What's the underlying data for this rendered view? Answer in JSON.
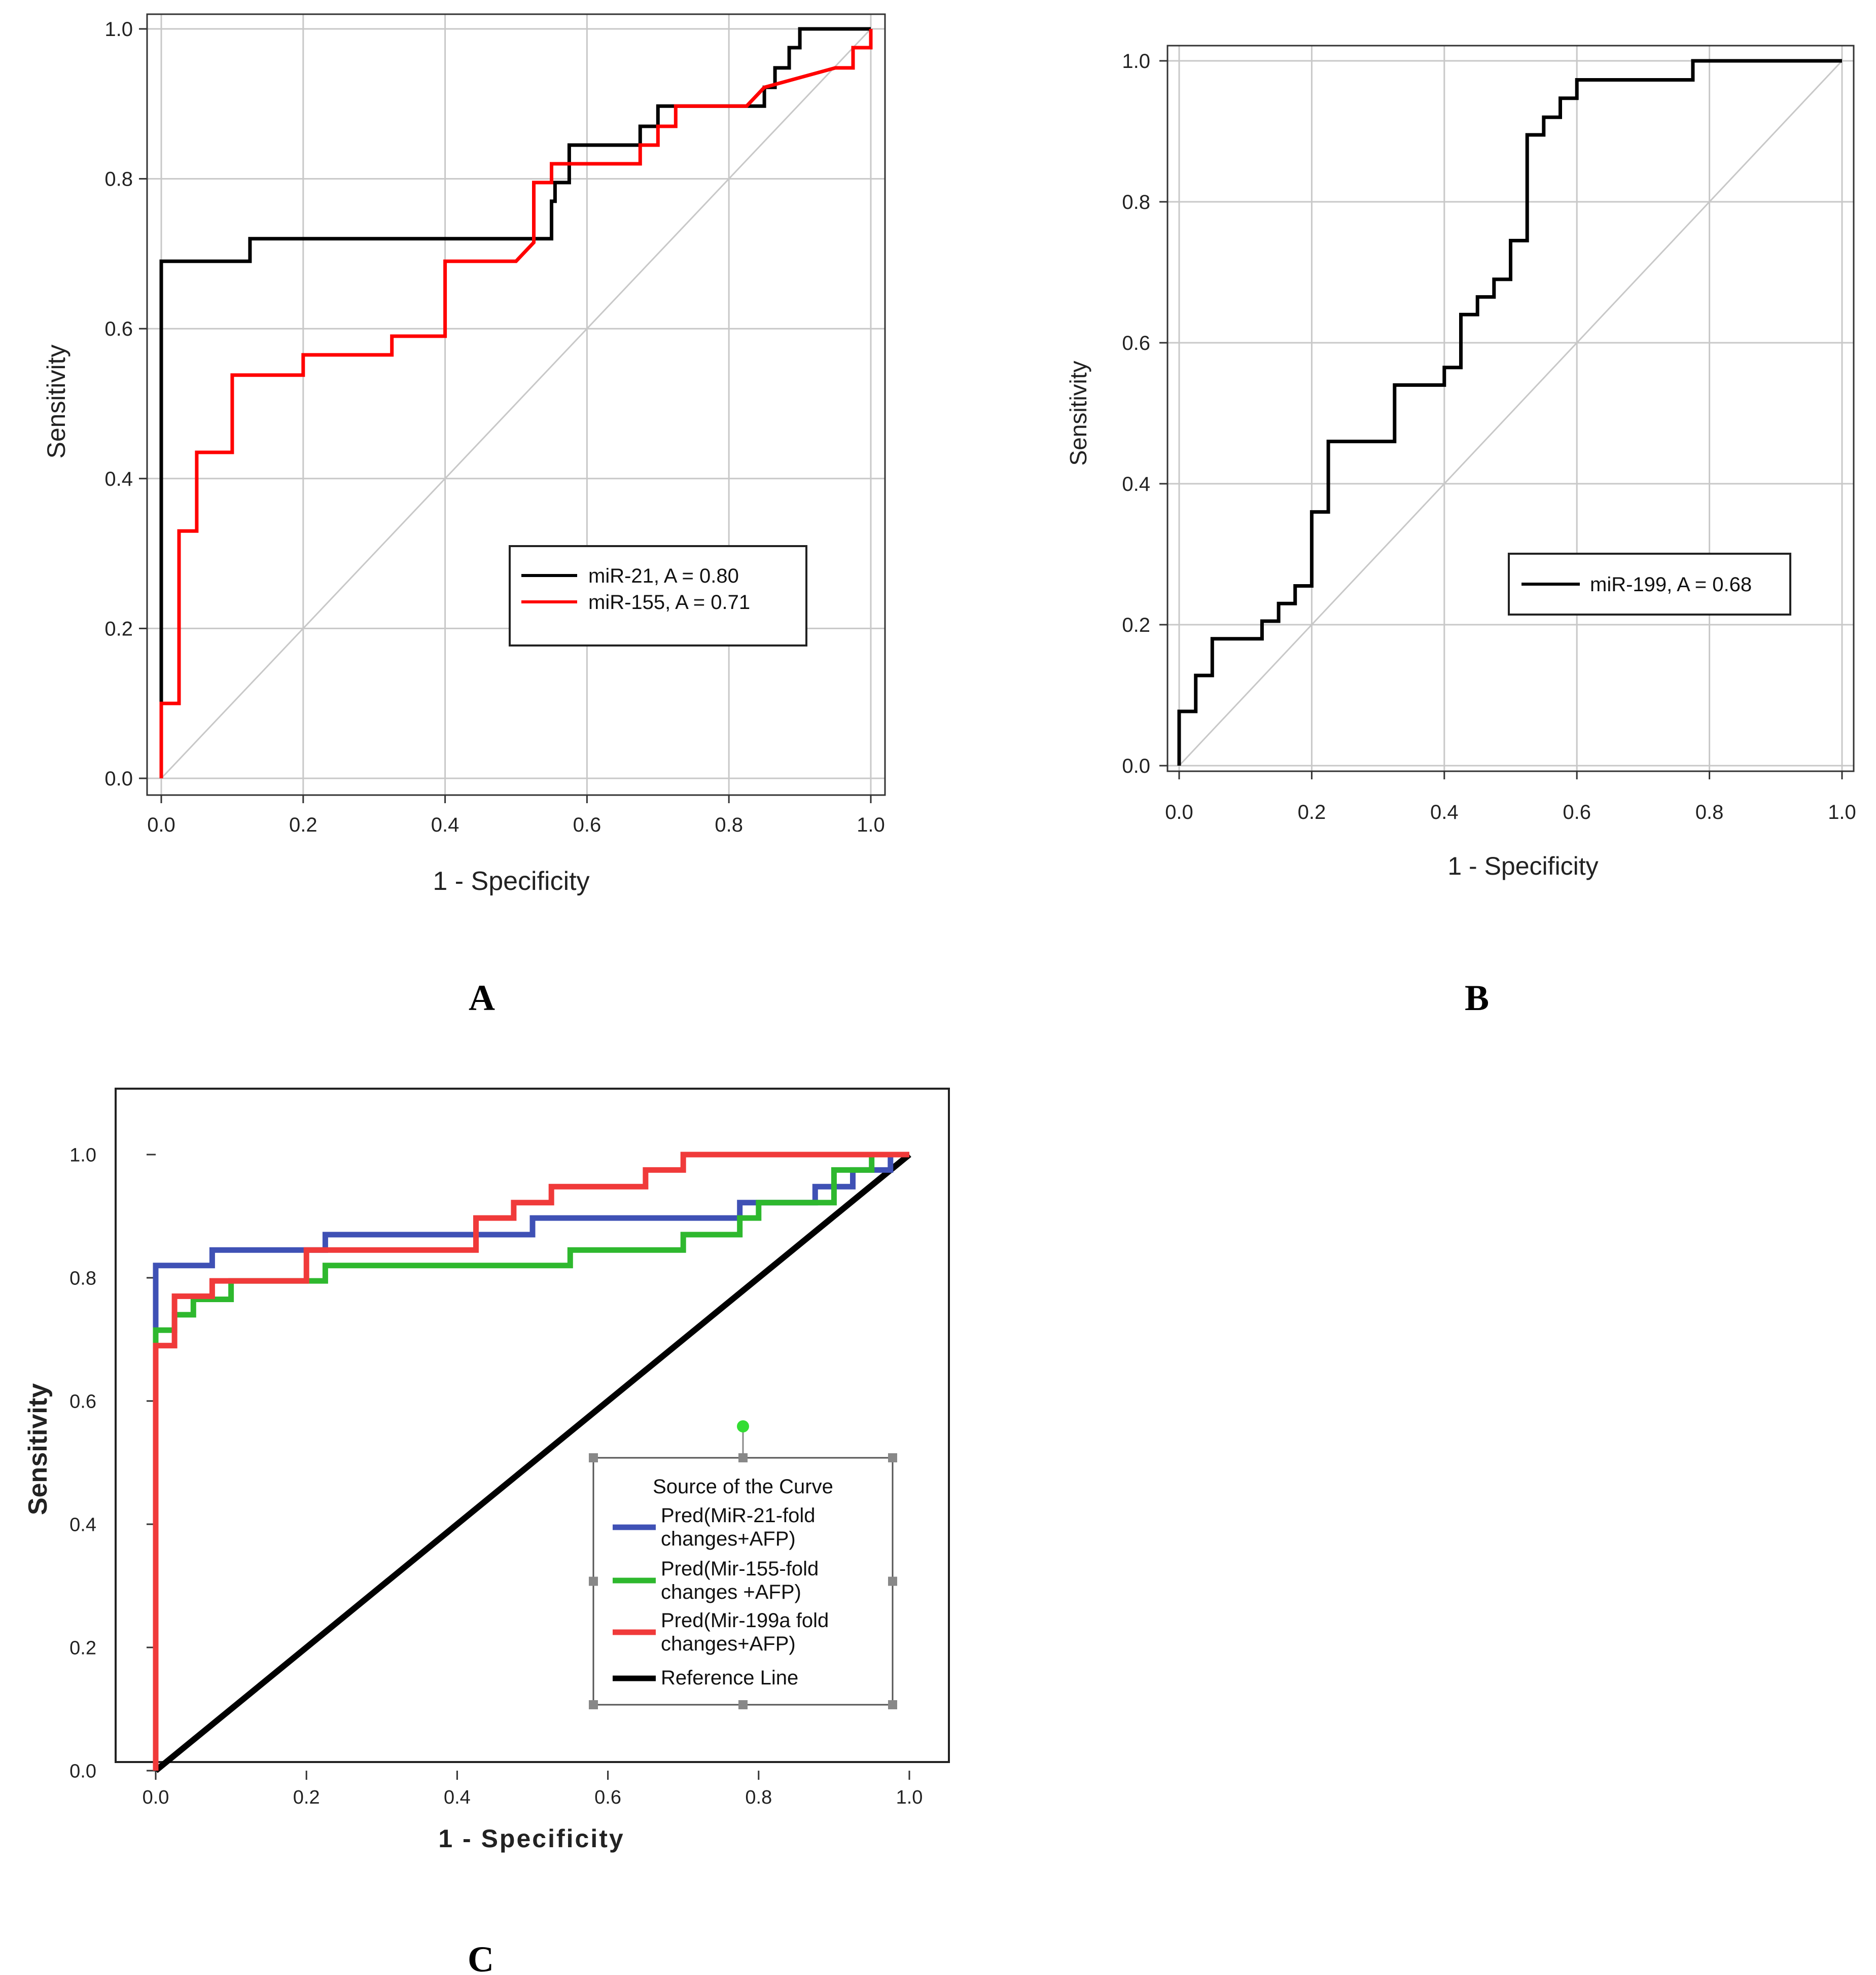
{
  "panel_labels": [
    "A",
    "B",
    "C"
  ],
  "chart_data": [
    {
      "panel": "A",
      "type": "line",
      "xlabel": "1 - Specificity",
      "ylabel": "Sensitivity",
      "xlim": [
        0,
        1
      ],
      "ylim": [
        0,
        1
      ],
      "xticks": [
        "0.0",
        "0.2",
        "0.4",
        "0.6",
        "0.8",
        "1.0"
      ],
      "yticks": [
        "0.0",
        "0.2",
        "0.4",
        "0.6",
        "0.8",
        "1.0"
      ],
      "grid": true,
      "legend_position": "lower-right",
      "reference_color": "#c8c8c8",
      "series": [
        {
          "name": "miR-21, A = 0.80",
          "color": "#000000",
          "points": [
            [
              0,
              0
            ],
            [
              0,
              0.1
            ],
            [
              0,
              0.69
            ],
            [
              0.125,
              0.69
            ],
            [
              0.125,
              0.72
            ],
            [
              0.55,
              0.72
            ],
            [
              0.55,
              0.77
            ],
            [
              0.555,
              0.77
            ],
            [
              0.555,
              0.795
            ],
            [
              0.575,
              0.795
            ],
            [
              0.575,
              0.845
            ],
            [
              0.675,
              0.845
            ],
            [
              0.675,
              0.87
            ],
            [
              0.7,
              0.87
            ],
            [
              0.7,
              0.897
            ],
            [
              0.85,
              0.897
            ],
            [
              0.85,
              0.922
            ],
            [
              0.865,
              0.922
            ],
            [
              0.865,
              0.948
            ],
            [
              0.885,
              0.948
            ],
            [
              0.885,
              0.975
            ],
            [
              0.9,
              0.975
            ],
            [
              0.9,
              1.0
            ],
            [
              1.0,
              1.0
            ]
          ]
        },
        {
          "name": "miR-155, A = 0.71",
          "color": "#ff0000",
          "points": [
            [
              0,
              0
            ],
            [
              0,
              0.1
            ],
            [
              0.025,
              0.1
            ],
            [
              0.025,
              0.33
            ],
            [
              0.05,
              0.33
            ],
            [
              0.05,
              0.435
            ],
            [
              0.1,
              0.435
            ],
            [
              0.1,
              0.538
            ],
            [
              0.2,
              0.538
            ],
            [
              0.2,
              0.565
            ],
            [
              0.325,
              0.565
            ],
            [
              0.325,
              0.59
            ],
            [
              0.4,
              0.59
            ],
            [
              0.4,
              0.69
            ],
            [
              0.5,
              0.69
            ],
            [
              0.525,
              0.715
            ],
            [
              0.525,
              0.795
            ],
            [
              0.55,
              0.795
            ],
            [
              0.55,
              0.82
            ],
            [
              0.675,
              0.82
            ],
            [
              0.675,
              0.845
            ],
            [
              0.7,
              0.845
            ],
            [
              0.7,
              0.87
            ],
            [
              0.725,
              0.87
            ],
            [
              0.725,
              0.897
            ],
            [
              0.825,
              0.897
            ],
            [
              0.85,
              0.922
            ],
            [
              0.95,
              0.948
            ],
            [
              0.975,
              0.948
            ],
            [
              0.975,
              0.975
            ],
            [
              1.0,
              0.975
            ],
            [
              1.0,
              1.0
            ]
          ]
        }
      ]
    },
    {
      "panel": "B",
      "type": "line",
      "xlabel": "1 - Specificity",
      "ylabel": "Sensitivity",
      "xlim": [
        0,
        1
      ],
      "ylim": [
        0,
        1
      ],
      "xticks": [
        "0.0",
        "0.2",
        "0.4",
        "0.6",
        "0.8",
        "1.0"
      ],
      "yticks": [
        "0.0",
        "0.2",
        "0.4",
        "0.6",
        "0.8",
        "1.0"
      ],
      "grid": true,
      "legend_position": "lower-right",
      "reference_color": "#c8c8c8",
      "series": [
        {
          "name": "miR-199, A = 0.68",
          "color": "#000000",
          "points": [
            [
              0,
              0
            ],
            [
              0,
              0.077
            ],
            [
              0.025,
              0.077
            ],
            [
              0.025,
              0.128
            ],
            [
              0.05,
              0.128
            ],
            [
              0.05,
              0.18
            ],
            [
              0.125,
              0.18
            ],
            [
              0.125,
              0.205
            ],
            [
              0.15,
              0.205
            ],
            [
              0.15,
              0.23
            ],
            [
              0.175,
              0.23
            ],
            [
              0.175,
              0.255
            ],
            [
              0.2,
              0.255
            ],
            [
              0.2,
              0.36
            ],
            [
              0.225,
              0.36
            ],
            [
              0.225,
              0.46
            ],
            [
              0.325,
              0.46
            ],
            [
              0.325,
              0.54
            ],
            [
              0.4,
              0.54
            ],
            [
              0.4,
              0.565
            ],
            [
              0.425,
              0.565
            ],
            [
              0.425,
              0.64
            ],
            [
              0.45,
              0.64
            ],
            [
              0.45,
              0.665
            ],
            [
              0.475,
              0.665
            ],
            [
              0.475,
              0.69
            ],
            [
              0.5,
              0.69
            ],
            [
              0.5,
              0.745
            ],
            [
              0.525,
              0.745
            ],
            [
              0.525,
              0.895
            ],
            [
              0.55,
              0.895
            ],
            [
              0.55,
              0.92
            ],
            [
              0.575,
              0.92
            ],
            [
              0.575,
              0.947
            ],
            [
              0.6,
              0.947
            ],
            [
              0.6,
              0.973
            ],
            [
              0.775,
              0.973
            ],
            [
              0.775,
              1.0
            ],
            [
              1.0,
              1.0
            ]
          ]
        }
      ]
    },
    {
      "panel": "C",
      "type": "line",
      "xlabel": "1 - Specificity",
      "ylabel": "Sensitivity",
      "xlim": [
        0,
        1
      ],
      "ylim": [
        0,
        1
      ],
      "xticks": [
        "0.0",
        "0.2",
        "0.4",
        "0.6",
        "0.8",
        "1.0"
      ],
      "yticks": [
        "0.0",
        "0.2",
        "0.4",
        "0.6",
        "0.8",
        "1.0"
      ],
      "grid": false,
      "legend_title": "Source of the Curve",
      "legend_position": "lower-right",
      "series": [
        {
          "name": [
            "Pred(MiR-21-fold",
            "changes+AFP)"
          ],
          "color": "#3f51b5",
          "points": [
            [
              0,
              0
            ],
            [
              0,
              0.82
            ],
            [
              0.075,
              0.82
            ],
            [
              0.075,
              0.845
            ],
            [
              0.225,
              0.845
            ],
            [
              0.225,
              0.87
            ],
            [
              0.5,
              0.87
            ],
            [
              0.5,
              0.897
            ],
            [
              0.775,
              0.897
            ],
            [
              0.775,
              0.922
            ],
            [
              0.875,
              0.922
            ],
            [
              0.875,
              0.948
            ],
            [
              0.925,
              0.948
            ],
            [
              0.925,
              0.975
            ],
            [
              0.975,
              0.975
            ],
            [
              0.975,
              1.0
            ],
            [
              1.0,
              1.0
            ]
          ]
        },
        {
          "name": [
            "Pred(Mir-155-fold",
            "changes +AFP)"
          ],
          "color": "#2eb82e",
          "points": [
            [
              0,
              0
            ],
            [
              0,
              0.715
            ],
            [
              0.025,
              0.715
            ],
            [
              0.025,
              0.74
            ],
            [
              0.05,
              0.74
            ],
            [
              0.05,
              0.765
            ],
            [
              0.1,
              0.765
            ],
            [
              0.1,
              0.795
            ],
            [
              0.225,
              0.795
            ],
            [
              0.225,
              0.82
            ],
            [
              0.55,
              0.82
            ],
            [
              0.55,
              0.845
            ],
            [
              0.7,
              0.845
            ],
            [
              0.7,
              0.87
            ],
            [
              0.775,
              0.87
            ],
            [
              0.775,
              0.897
            ],
            [
              0.8,
              0.897
            ],
            [
              0.8,
              0.922
            ],
            [
              0.9,
              0.922
            ],
            [
              0.9,
              0.975
            ],
            [
              0.95,
              0.975
            ],
            [
              0.95,
              1.0
            ],
            [
              1.0,
              1.0
            ]
          ]
        },
        {
          "name": [
            "Pred(Mir-199a fold",
            "changes+AFP)"
          ],
          "color": "#f03a3a",
          "points": [
            [
              0,
              0
            ],
            [
              0,
              0.69
            ],
            [
              0.025,
              0.69
            ],
            [
              0.025,
              0.77
            ],
            [
              0.075,
              0.77
            ],
            [
              0.075,
              0.795
            ],
            [
              0.2,
              0.795
            ],
            [
              0.2,
              0.845
            ],
            [
              0.425,
              0.845
            ],
            [
              0.425,
              0.897
            ],
            [
              0.475,
              0.897
            ],
            [
              0.475,
              0.922
            ],
            [
              0.525,
              0.922
            ],
            [
              0.525,
              0.948
            ],
            [
              0.65,
              0.948
            ],
            [
              0.65,
              0.975
            ],
            [
              0.7,
              0.975
            ],
            [
              0.7,
              1.0
            ],
            [
              1.0,
              1.0
            ]
          ]
        },
        {
          "name": [
            "Reference Line"
          ],
          "color": "#000000",
          "points": [
            [
              0,
              0
            ],
            [
              1,
              1
            ]
          ]
        }
      ]
    }
  ]
}
